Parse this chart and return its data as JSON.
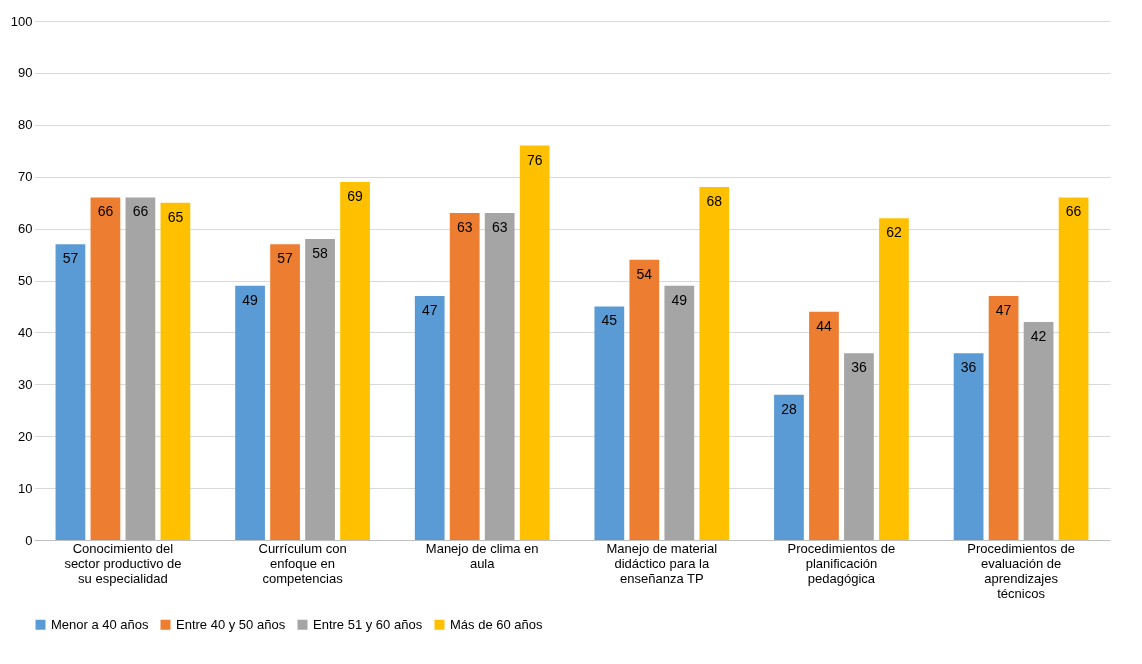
{
  "chart_data": {
    "type": "bar",
    "categories": [
      "Conocimiento del sector productivo de su especialidad",
      "Currículum con enfoque en competencias",
      "Manejo de clima en aula",
      "Manejo de material didáctico para la enseñanza TP",
      "Procedimientos de planificación pedagógica",
      "Procedimientos de evaluación de aprendizajes técnicos"
    ],
    "series": [
      {
        "name": "Menor a 40 años",
        "color": "#5b9bd5",
        "values": [
          57,
          49,
          47,
          45,
          28,
          36
        ]
      },
      {
        "name": "Entre 40 y 50 años",
        "color": "#ed7d31",
        "values": [
          66,
          57,
          63,
          54,
          44,
          47
        ]
      },
      {
        "name": "Entre 51 y 60 años",
        "color": "#a5a5a5",
        "values": [
          66,
          58,
          63,
          49,
          36,
          42
        ]
      },
      {
        "name": "Más de 60 años",
        "color": "#ffc000",
        "values": [
          65,
          69,
          76,
          68,
          62,
          66
        ]
      }
    ],
    "ylim": [
      0,
      100
    ],
    "yticks": [
      0,
      10,
      20,
      30,
      40,
      50,
      60,
      70,
      80,
      90,
      100
    ],
    "grid": "y",
    "legend": "bottom",
    "data_labels": true
  }
}
